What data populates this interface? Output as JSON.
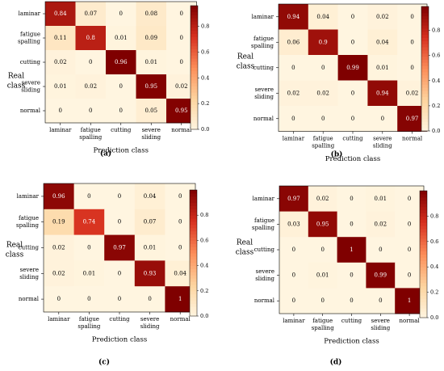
{
  "chart_data": [
    {
      "type": "heatmap",
      "panel_label": "(a)",
      "xlabel": "Prediction class",
      "ylabel": [
        "Real",
        "class"
      ],
      "x_ticks": [
        [
          "laminar"
        ],
        [
          "fatigue",
          "spalling"
        ],
        [
          "cutting"
        ],
        [
          "severe",
          "sliding"
        ],
        [
          "normal"
        ]
      ],
      "y_ticks": [
        [
          "laminar"
        ],
        [
          "fatigue",
          "spalling"
        ],
        [
          "cutting"
        ],
        [
          "severe",
          "sliding"
        ],
        [
          "normal"
        ]
      ],
      "values": [
        [
          0.84,
          0.07,
          0.0,
          0.08,
          0.0
        ],
        [
          0.11,
          0.8,
          0.01,
          0.09,
          0.0
        ],
        [
          0.02,
          0.0,
          0.96,
          0.01,
          0.0
        ],
        [
          0.01,
          0.02,
          0.0,
          0.95,
          0.02
        ],
        [
          0.0,
          0.0,
          0.0,
          0.05,
          0.95
        ]
      ],
      "colorbar_ticks": [
        "0.0",
        "0.2",
        "0.4",
        "0.6",
        "0.8"
      ],
      "color_range": [
        0,
        0.96
      ]
    },
    {
      "type": "heatmap",
      "panel_label": "(b)",
      "xlabel": "Prediction class",
      "ylabel": [
        "Real",
        "class"
      ],
      "x_ticks": [
        [
          "laminar"
        ],
        [
          "fatigue",
          "spalling"
        ],
        [
          "cutting"
        ],
        [
          "severe",
          "sliding"
        ],
        [
          "normal"
        ]
      ],
      "y_ticks": [
        [
          "laminar"
        ],
        [
          "fatigue",
          "spalling"
        ],
        [
          "cutting"
        ],
        [
          "severe",
          "sliding"
        ],
        [
          "normal"
        ]
      ],
      "values": [
        [
          0.94,
          0.04,
          0.0,
          0.02,
          0.0
        ],
        [
          0.06,
          0.9,
          0.0,
          0.04,
          0.0
        ],
        [
          0.0,
          0.0,
          0.99,
          0.01,
          0.0
        ],
        [
          0.02,
          0.02,
          0.0,
          0.94,
          0.02
        ],
        [
          0.0,
          0.0,
          0.0,
          0.0,
          0.97
        ]
      ],
      "colorbar_ticks": [
        "0.0",
        "0.2",
        "0.4",
        "0.6",
        "0.8"
      ],
      "color_range": [
        0,
        0.99
      ]
    },
    {
      "type": "heatmap",
      "panel_label": "(c)",
      "xlabel": "Prediction class",
      "ylabel": [
        "Real",
        "class"
      ],
      "x_ticks": [
        [
          "laminar"
        ],
        [
          "fatigue",
          "spalling"
        ],
        [
          "cutting"
        ],
        [
          "severe",
          "sliding"
        ],
        [
          "normal"
        ]
      ],
      "y_ticks": [
        [
          "laminar"
        ],
        [
          "fatigue",
          "spalling"
        ],
        [
          "cutting"
        ],
        [
          "severe",
          "sliding"
        ],
        [
          "normal"
        ]
      ],
      "values": [
        [
          0.96,
          0.0,
          0.0,
          0.04,
          0.0
        ],
        [
          0.19,
          0.74,
          0.0,
          0.07,
          0.0
        ],
        [
          0.02,
          0.0,
          0.97,
          0.01,
          0.0
        ],
        [
          0.02,
          0.01,
          0.0,
          0.93,
          0.04
        ],
        [
          0.0,
          0.0,
          0.0,
          0.0,
          1.0
        ]
      ],
      "colorbar_ticks": [
        "0.0",
        "0.2",
        "0.4",
        "0.6",
        "0.8"
      ],
      "color_range": [
        0,
        1.0
      ]
    },
    {
      "type": "heatmap",
      "panel_label": "(d)",
      "xlabel": "Prediction class",
      "ylabel": [
        "Real",
        "class"
      ],
      "x_ticks": [
        [
          "laminar"
        ],
        [
          "fatigue",
          "spalling"
        ],
        [
          "cutting"
        ],
        [
          "severe",
          "sliding"
        ],
        [
          "normal"
        ]
      ],
      "y_ticks": [
        [
          "laminar"
        ],
        [
          "fatigue",
          "spalling"
        ],
        [
          "cutting"
        ],
        [
          "severe",
          "sliding"
        ],
        [
          "normal"
        ]
      ],
      "values": [
        [
          0.97,
          0.02,
          0.0,
          0.01,
          0.0
        ],
        [
          0.03,
          0.95,
          0.0,
          0.02,
          0.0
        ],
        [
          0.0,
          0.0,
          1.0,
          0.0,
          0.0
        ],
        [
          0.0,
          0.01,
          0.0,
          0.99,
          0.0
        ],
        [
          0.0,
          0.0,
          0.0,
          0.0,
          1.0
        ]
      ],
      "colorbar_ticks": [
        "0.0",
        "0.2",
        "0.4",
        "0.6",
        "0.8"
      ],
      "color_range": [
        0,
        1.0
      ]
    }
  ],
  "colormap": [
    "#fff5e0",
    "#fdd49e",
    "#fc8d59",
    "#d7301f",
    "#7f0000"
  ]
}
